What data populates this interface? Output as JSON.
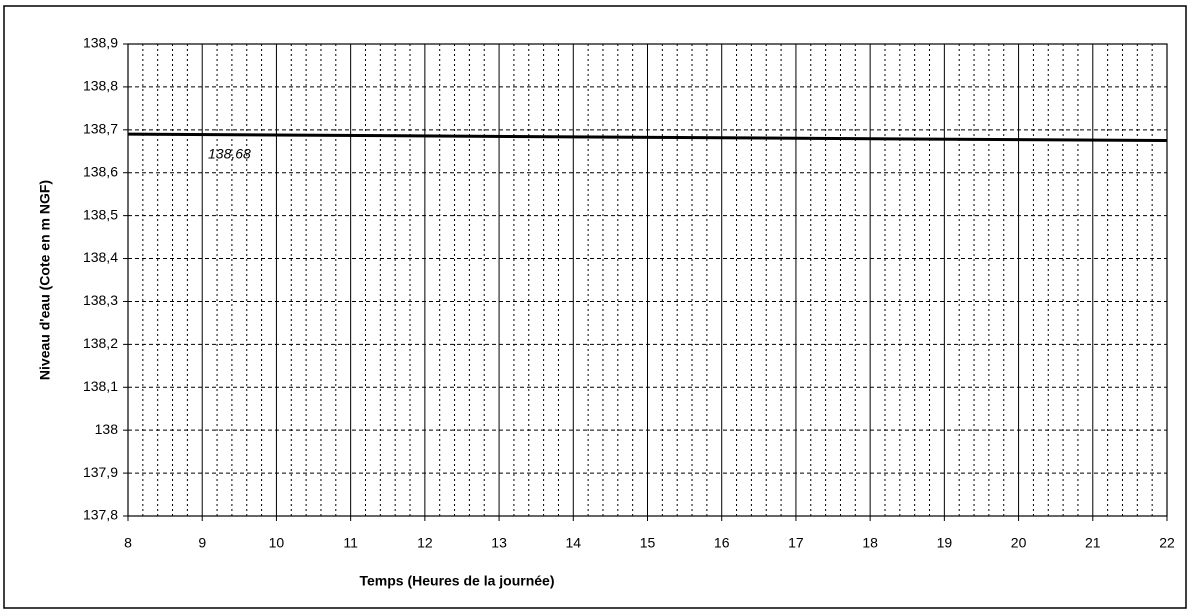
{
  "chart_data": {
    "type": "line",
    "x_label": "Temps (Heures de la journée)",
    "y_label": "Niveau d'eau (Cote en m NGF)",
    "annotation": "138,68",
    "x": [
      8,
      22
    ],
    "values": [
      138.69,
      138.675
    ],
    "color": "#000000",
    "xlim": [
      8,
      22
    ],
    "xticks": [
      8,
      9,
      10,
      11,
      12,
      13,
      14,
      15,
      16,
      17,
      18,
      19,
      20,
      21,
      22
    ],
    "ylim": [
      137.8,
      138.9
    ],
    "yticks": [
      {
        "value": 137.8,
        "label": "137,8"
      },
      {
        "value": 137.9,
        "label": "137,9"
      },
      138,
      {
        "value": 138.1,
        "label": "138,1"
      },
      {
        "value": 138.2,
        "label": "138,2"
      },
      {
        "value": 138.3,
        "label": "138,3"
      },
      {
        "value": 138.4,
        "label": "138,4"
      },
      {
        "value": 138.5,
        "label": "138,5"
      },
      {
        "value": 138.6,
        "label": "138,6"
      },
      {
        "value": 138.7,
        "label": "138,7"
      },
      {
        "value": 138.8,
        "label": "138,8"
      },
      {
        "value": 138.9,
        "label": "138,9"
      }
    ],
    "grid": true
  }
}
